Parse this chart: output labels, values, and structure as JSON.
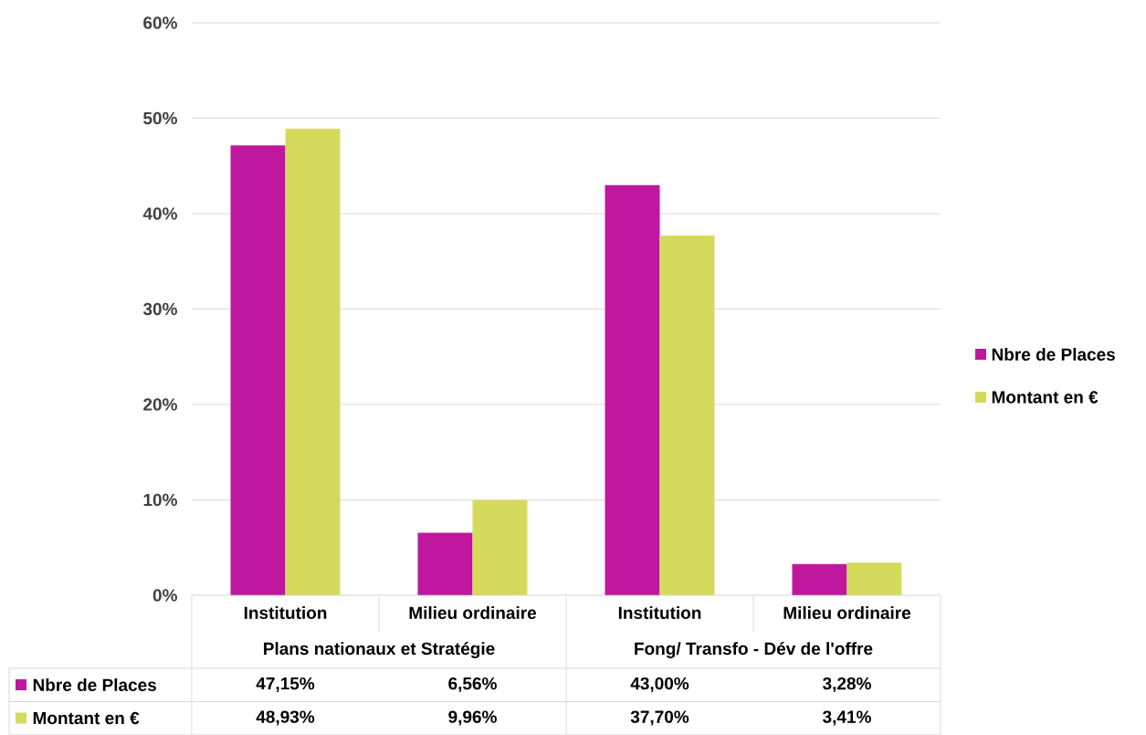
{
  "chart_data": {
    "type": "bar",
    "categories": [
      "Institution",
      "Milieu ordinaire",
      "Institution",
      "Milieu ordinaire"
    ],
    "series": [
      {
        "name": "Nbre de Places",
        "color": "#c0179f",
        "values": [
          47.15,
          6.56,
          43.0,
          3.28
        ],
        "value_labels": [
          "47,15%",
          "6,56%",
          "43,00%",
          "3,28%"
        ]
      },
      {
        "name": "Montant en €",
        "color": "#d6da5c",
        "values": [
          48.93,
          9.96,
          37.7,
          3.41
        ],
        "value_labels": [
          "48,93%",
          "9,96%",
          "37,70%",
          "3,41%"
        ]
      }
    ],
    "annotations": [
      "Plans nationaux et Stratégie",
      "Fong/ Transfo - Dév de l'offre"
    ],
    "ylim": [
      0,
      60
    ],
    "yticks": [
      {
        "value": 0,
        "label": "0%"
      },
      {
        "value": 10,
        "label": "10%"
      },
      {
        "value": 20,
        "label": "20%"
      },
      {
        "value": 30,
        "label": "30%"
      },
      {
        "value": 40,
        "label": "40%"
      },
      {
        "value": 50,
        "label": "50%"
      },
      {
        "value": 60,
        "label": "60%"
      }
    ],
    "grid": "y",
    "legend": "right"
  }
}
